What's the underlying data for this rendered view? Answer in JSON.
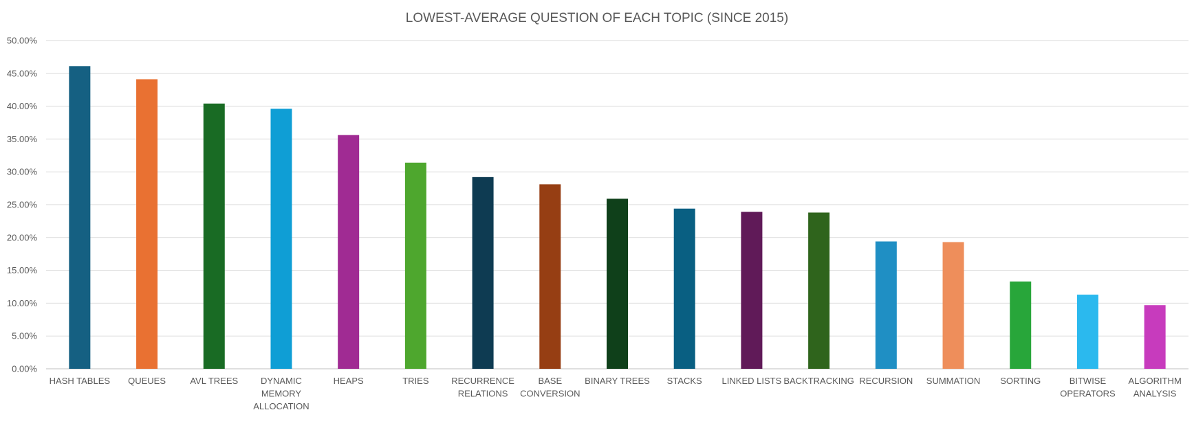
{
  "chart_data": {
    "type": "bar",
    "title": "LOWEST-AVERAGE QUESTION OF EACH TOPIC (SINCE 2015)",
    "xlabel": "",
    "ylabel": "",
    "ylim": [
      0,
      0.5
    ],
    "y_ticks": [
      "0.00%",
      "5.00%",
      "10.00%",
      "15.00%",
      "20.00%",
      "25.00%",
      "30.00%",
      "35.00%",
      "40.00%",
      "45.00%",
      "50.00%"
    ],
    "grid": true,
    "legend": "none",
    "categories": [
      "HASH TABLES",
      "QUEUES",
      "AVL TREES",
      "DYNAMIC MEMORY ALLOCATION",
      "HEAPS",
      "TRIES",
      "RECURRENCE RELATIONS",
      "BASE CONVERSION",
      "BINARY TREES",
      "STACKS",
      "LINKED LISTS",
      "BACKTRACKING",
      "RECURSION",
      "SUMMATION",
      "SORTING",
      "BITWISE OPERATORS",
      "ALGORITHM ANALYSIS"
    ],
    "category_lines": [
      [
        "HASH TABLES"
      ],
      [
        "QUEUES"
      ],
      [
        "AVL TREES"
      ],
      [
        "DYNAMIC",
        "MEMORY",
        "ALLOCATION"
      ],
      [
        "HEAPS"
      ],
      [
        "TRIES"
      ],
      [
        "RECURRENCE",
        "RELATIONS"
      ],
      [
        "BASE",
        "CONVERSION"
      ],
      [
        "BINARY TREES"
      ],
      [
        "STACKS"
      ],
      [
        "LINKED LISTS"
      ],
      [
        "BACKTRACKING"
      ],
      [
        "RECURSION"
      ],
      [
        "SUMMATION"
      ],
      [
        "SORTING"
      ],
      [
        "BITWISE",
        "OPERATORS"
      ],
      [
        "ALGORITHM",
        "ANALYSIS"
      ]
    ],
    "values": [
      0.461,
      0.441,
      0.404,
      0.396,
      0.356,
      0.314,
      0.292,
      0.281,
      0.259,
      0.244,
      0.239,
      0.238,
      0.194,
      0.193,
      0.133,
      0.113,
      0.097
    ],
    "colors": [
      "#156082",
      "#E97132",
      "#196B24",
      "#0F9ED5",
      "#A02B93",
      "#4EA72E",
      "#0E3B52",
      "#963E13",
      "#0F401A",
      "#095F82",
      "#601A58",
      "#2F641C",
      "#1F8FC4",
      "#EE8E5B",
      "#28A63A",
      "#2BB9EE",
      "#C73BBD"
    ]
  }
}
